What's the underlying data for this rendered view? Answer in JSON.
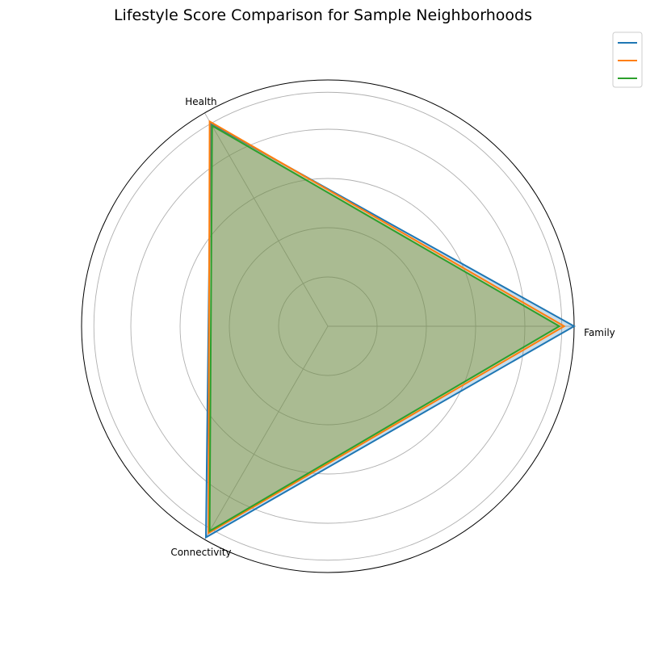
{
  "chart_data": {
    "type": "radar",
    "title": "Lifestyle Score Comparison for Sample Neighborhoods",
    "categories": [
      "Family",
      "Health",
      "Connectivity"
    ],
    "rmax": 100,
    "gridlines": [
      20,
      40,
      60,
      80,
      95
    ],
    "grid": true,
    "legend_position": "top-right",
    "series": [
      {
        "values": [
          100,
          95,
          99
        ],
        "color": "#1f77b4"
      },
      {
        "values": [
          96,
          96,
          97
        ],
        "color": "#ff7f0e"
      },
      {
        "values": [
          94,
          94,
          96
        ],
        "color": "#2ca02c"
      }
    ]
  }
}
